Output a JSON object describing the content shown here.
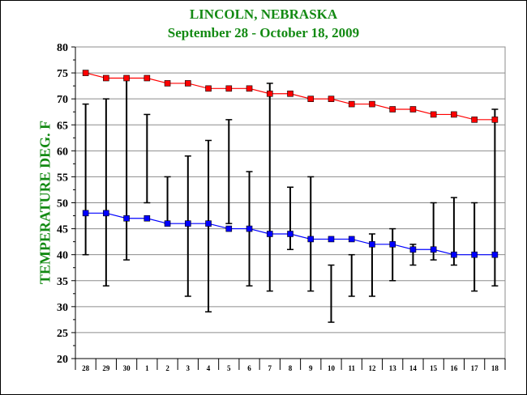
{
  "chart_data": {
    "type": "line",
    "title": "LINCOLN, NEBRASKA",
    "subtitle": "September 28 - October 18,  2009",
    "ylabel": "TEMPERATURE DEG. F",
    "xlabel": "",
    "ylim": [
      20,
      80
    ],
    "yticks": [
      20,
      25,
      30,
      35,
      40,
      45,
      50,
      55,
      60,
      65,
      70,
      75,
      80
    ],
    "categories": [
      "28",
      "29",
      "30",
      "1",
      "2",
      "3",
      "4",
      "5",
      "6",
      "7",
      "8",
      "9",
      "10",
      "11",
      "12",
      "13",
      "14",
      "15",
      "16",
      "17",
      "18"
    ],
    "series": [
      {
        "color": "#ff0000",
        "values": [
          75,
          74,
          74,
          74,
          73,
          73,
          72,
          72,
          72,
          71,
          71,
          70,
          70,
          69,
          69,
          68,
          68,
          67,
          67,
          66,
          66
        ]
      },
      {
        "color": "#0000ff",
        "values": [
          48,
          48,
          47,
          47,
          46,
          46,
          46,
          45,
          45,
          44,
          44,
          43,
          43,
          43,
          42,
          42,
          41,
          41,
          40,
          40,
          40
        ]
      }
    ],
    "range_bars": {
      "color": "#000000",
      "low": [
        40,
        34,
        39,
        50,
        46,
        32,
        29,
        46,
        34,
        33,
        41,
        33,
        27,
        32,
        32,
        35,
        38,
        39,
        38,
        33,
        34
      ],
      "high": [
        69,
        70,
        74,
        67,
        55,
        59,
        62,
        66,
        56,
        73,
        53,
        55,
        38,
        40,
        44,
        45,
        42,
        50,
        51,
        50,
        68
      ]
    },
    "grid": true,
    "legend": "none"
  }
}
